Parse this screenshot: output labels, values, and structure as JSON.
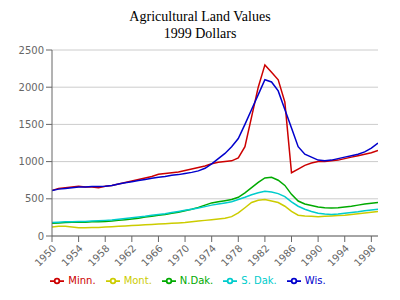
{
  "chart_data": {
    "type": "line",
    "title": "Agricultural Land Values\n1999 Dollars",
    "x": [
      1950,
      1951,
      1952,
      1953,
      1954,
      1955,
      1956,
      1957,
      1958,
      1959,
      1960,
      1961,
      1962,
      1963,
      1964,
      1965,
      1966,
      1967,
      1968,
      1969,
      1970,
      1971,
      1972,
      1973,
      1974,
      1975,
      1976,
      1977,
      1978,
      1979,
      1980,
      1981,
      1982,
      1983,
      1984,
      1985,
      1986,
      1987,
      1988,
      1989,
      1990,
      1991,
      1992,
      1993,
      1994,
      1995,
      1996,
      1997,
      1998,
      1999
    ],
    "series": [
      {
        "name": "Minn.",
        "color": "#cc0000",
        "values": [
          610,
          640,
          650,
          660,
          670,
          660,
          660,
          650,
          670,
          680,
          700,
          720,
          740,
          760,
          780,
          800,
          830,
          840,
          850,
          860,
          880,
          900,
          920,
          940,
          970,
          990,
          1000,
          1010,
          1050,
          1200,
          1600,
          2000,
          2300,
          2200,
          2100,
          1800,
          850,
          900,
          950,
          980,
          1000,
          1000,
          1010,
          1020,
          1040,
          1060,
          1080,
          1100,
          1120,
          1150
        ]
      },
      {
        "name": "Mont.",
        "color": "#cccc00",
        "values": [
          120,
          130,
          130,
          120,
          110,
          110,
          115,
          115,
          120,
          125,
          130,
          135,
          140,
          145,
          150,
          155,
          160,
          165,
          170,
          175,
          180,
          190,
          200,
          210,
          220,
          230,
          240,
          260,
          310,
          380,
          450,
          480,
          490,
          470,
          450,
          400,
          330,
          280,
          270,
          265,
          260,
          265,
          270,
          275,
          280,
          290,
          300,
          310,
          320,
          330
        ]
      },
      {
        "name": "N.Dak.",
        "color": "#00aa00",
        "values": [
          170,
          175,
          180,
          185,
          185,
          185,
          190,
          190,
          195,
          200,
          210,
          220,
          230,
          240,
          255,
          265,
          280,
          290,
          305,
          320,
          340,
          360,
          385,
          415,
          445,
          460,
          475,
          490,
          520,
          580,
          650,
          720,
          780,
          790,
          750,
          680,
          560,
          470,
          430,
          410,
          390,
          380,
          375,
          380,
          390,
          400,
          415,
          430,
          440,
          450
        ]
      },
      {
        "name": "S. Dak.",
        "color": "#00cccc",
        "values": [
          180,
          185,
          190,
          190,
          195,
          195,
          200,
          205,
          210,
          215,
          225,
          235,
          245,
          255,
          265,
          280,
          290,
          300,
          315,
          330,
          345,
          360,
          375,
          395,
          415,
          430,
          445,
          460,
          490,
          520,
          555,
          580,
          600,
          590,
          570,
          530,
          460,
          400,
          360,
          330,
          305,
          295,
          290,
          295,
          305,
          315,
          325,
          340,
          350,
          360
        ]
      },
      {
        "name": "Wis.",
        "color": "#0000cc",
        "values": [
          610,
          630,
          640,
          650,
          660,
          660,
          665,
          665,
          670,
          680,
          700,
          715,
          730,
          745,
          760,
          775,
          790,
          800,
          815,
          825,
          840,
          855,
          875,
          910,
          970,
          1040,
          1110,
          1200,
          1310,
          1500,
          1700,
          1900,
          2100,
          2070,
          1950,
          1700,
          1450,
          1200,
          1100,
          1060,
          1020,
          1010,
          1020,
          1040,
          1060,
          1080,
          1100,
          1130,
          1180,
          1250
        ]
      }
    ],
    "xlim": [
      1950,
      1999
    ],
    "xticks": [
      1950,
      1954,
      1958,
      1962,
      1966,
      1970,
      1974,
      1978,
      1982,
      1986,
      1990,
      1994,
      1998
    ],
    "ylim": [
      0,
      2500
    ],
    "yticks": [
      0,
      500,
      1000,
      1500,
      2000,
      2500
    ],
    "grid": true,
    "legend": "bottom"
  }
}
